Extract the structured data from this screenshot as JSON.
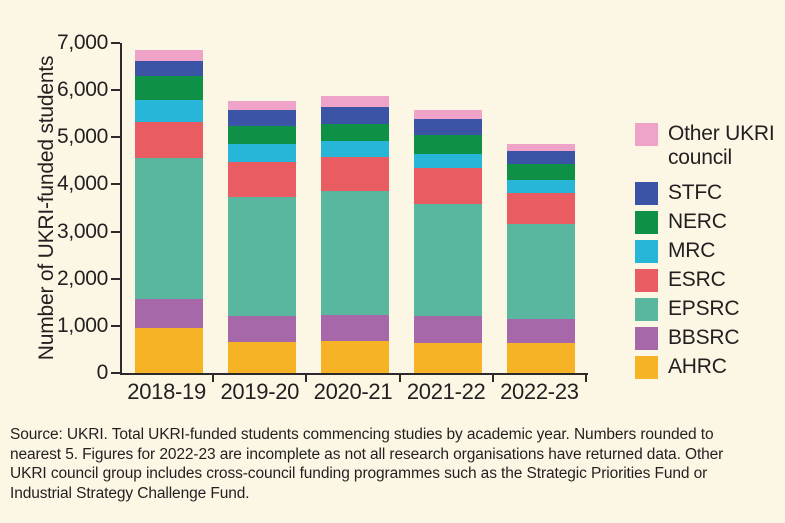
{
  "style": {
    "background": "#fcf6e5",
    "text_color": "#231f20",
    "axis_color": "#2e2a2b"
  },
  "y_axis_title": "Number of UKRI-funded students",
  "chart_data": {
    "type": "bar",
    "stacked": true,
    "title": "",
    "xlabel": "",
    "ylabel": "Number of UKRI-funded students",
    "ylim": [
      0,
      7000
    ],
    "grid": false,
    "legend_position": "right",
    "categories": [
      "2018-19",
      "2019-20",
      "2020-21",
      "2021-22",
      "2022-23"
    ],
    "series": [
      {
        "name": "AHRC",
        "color": "#f6b325",
        "values": [
          950,
          660,
          680,
          645,
          645
        ]
      },
      {
        "name": "BBSRC",
        "color": "#a668a8",
        "values": [
          630,
          560,
          545,
          560,
          495
        ]
      },
      {
        "name": "EPSRC",
        "color": "#58b79e",
        "values": [
          2975,
          2520,
          2640,
          2375,
          2025
        ]
      },
      {
        "name": "ESRC",
        "color": "#e95d62",
        "values": [
          775,
          735,
          720,
          775,
          655
        ]
      },
      {
        "name": "MRC",
        "color": "#27b5d8",
        "values": [
          465,
          385,
          330,
          295,
          275
        ]
      },
      {
        "name": "NERC",
        "color": "#0e9147",
        "values": [
          505,
          385,
          365,
          405,
          335
        ]
      },
      {
        "name": "STFC",
        "color": "#3b54a5",
        "values": [
          320,
          325,
          370,
          330,
          275
        ]
      },
      {
        "name": "Other UKRI council",
        "color": "#efa3c8",
        "values": [
          230,
          210,
          225,
          195,
          160
        ]
      }
    ],
    "totals": [
      6850,
      5780,
      5875,
      5580,
      4865
    ],
    "y_ticks": [
      {
        "label": "7,000",
        "value": 7000
      },
      {
        "label": "6,000",
        "value": 6000
      },
      {
        "label": "5,000",
        "value": 5000
      },
      {
        "label": "4,000",
        "value": 4000
      },
      {
        "label": "3,000",
        "value": 3000
      },
      {
        "label": "2,000",
        "value": 2000
      },
      {
        "label": "1,000",
        "value": 1000
      },
      {
        "label": "0",
        "value": 0
      }
    ],
    "legend": [
      "Other UKRI council",
      "STFC",
      "NERC",
      "MRC",
      "ESRC",
      "EPSRC",
      "BBSRC",
      "AHRC"
    ]
  },
  "footer": {
    "text": "Source: UKRI. Total UKRI-funded students commencing studies by academic year. Numbers rounded to nearest 5. Figures for 2022-23 are incomplete as not all research organisations have returned data. Other UKRI council group includes cross-council funding programmes such as the Strategic Priorities Fund or Industrial Strategy Challenge Fund."
  }
}
